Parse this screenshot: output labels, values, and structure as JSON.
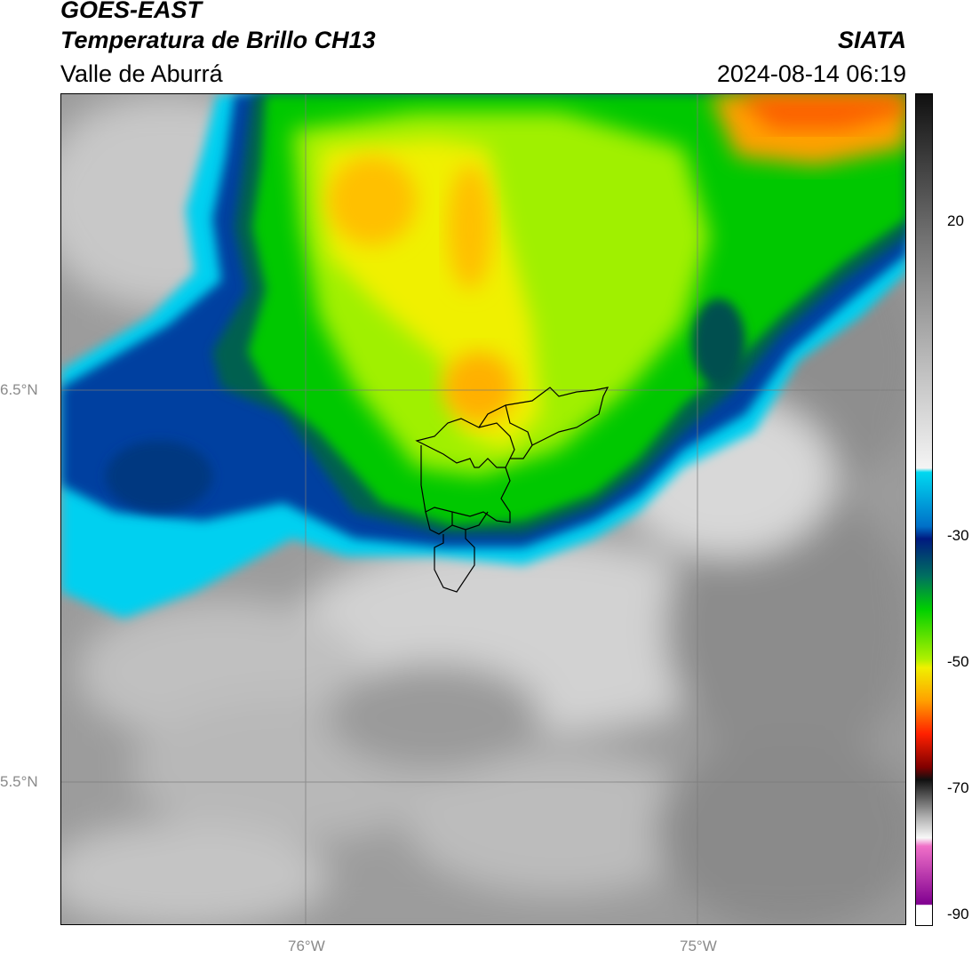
{
  "header": {
    "satellite": "GOES-EAST",
    "product": "Temperatura de Brillo CH13",
    "region": "Valle de Aburrá",
    "agency": "SIATA",
    "datetime": "2024-08-14 06:19"
  },
  "map": {
    "lat_labels": [
      "6.5°N",
      "5.5°N"
    ],
    "lon_labels": [
      "76°W",
      "75°W"
    ],
    "gridlines": true,
    "overlay": "municipal boundaries of Valle de Aburrá"
  },
  "colorbar": {
    "tick_labels": [
      "20",
      "-30",
      "-50",
      "-70",
      "-90"
    ],
    "palette_top_to_bottom": [
      "#1a1a1a",
      "#5a5a5a",
      "#a0a0a0",
      "#ececec",
      "#00d8f0",
      "#0060c0",
      "#001a80",
      "#008060",
      "#00d000",
      "#a0f000",
      "#f0f000",
      "#ffa000",
      "#ff2000",
      "#a00000",
      "#101010",
      "#a0a0a0",
      "#ffffff",
      "#e060c0",
      "#800080",
      "#ffffff"
    ]
  },
  "colors": {
    "cloud_top_warm": "#fc7000",
    "cloud_top_cold": "#00c8f0",
    "clear_sky": "#9a9a9a"
  }
}
